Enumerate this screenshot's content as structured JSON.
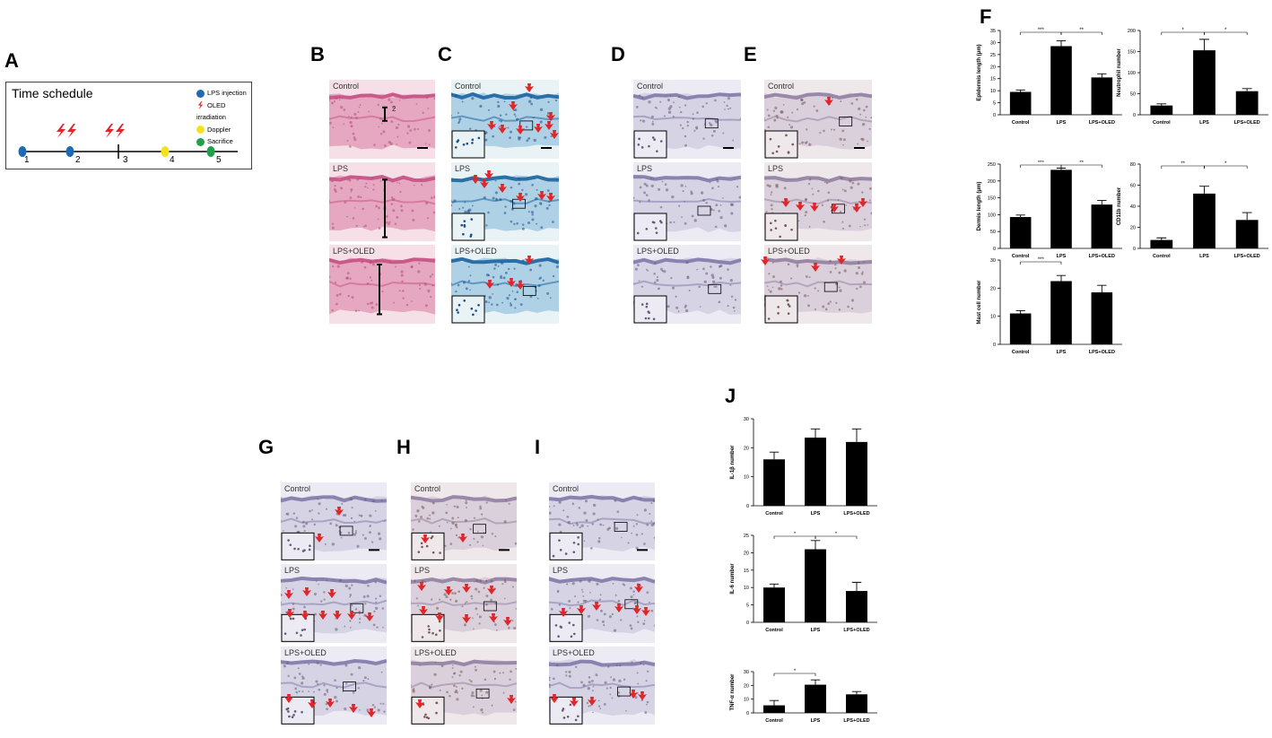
{
  "panel_labels": {
    "A": "A",
    "B": "B",
    "C": "C",
    "D": "D",
    "E": "E",
    "F": "F",
    "G": "G",
    "H": "H",
    "I": "I",
    "J": "J"
  },
  "schedule": {
    "title": "Time schedule",
    "legend": [
      {
        "label": "LPS injection",
        "color": "#1f6ab5",
        "icon": "blue-dot-icon"
      },
      {
        "label": "OLED irradiation",
        "color": "#e0262a",
        "icon": "red-lightning-icon"
      },
      {
        "label": "Doppler",
        "color": "#f5e31a",
        "icon": "yellow-dot-icon"
      },
      {
        "label": "Sacrifice",
        "color": "#21a04a",
        "icon": "green-dot-icon"
      }
    ],
    "days": [
      "1",
      "2",
      "3",
      "4",
      "5"
    ]
  },
  "tissue_labels": {
    "control": "Control",
    "lps": "LPS",
    "lps_oled": "LPS+OLED",
    "oled_marks": "2"
  },
  "chart_data": [
    {
      "id": "epidermis",
      "type": "bar",
      "categories": [
        "Control",
        "LPS",
        "LPS+OLED"
      ],
      "values": [
        9.5,
        28.5,
        15.5
      ],
      "errors": [
        0.8,
        2.2,
        1.5
      ],
      "ylabel": "Epidermis length (μm)",
      "ylim": [
        0,
        35
      ],
      "yticks": [
        0,
        5,
        10,
        15,
        20,
        25,
        30,
        35
      ],
      "sig": [
        {
          "from": 0,
          "to": 1,
          "label": "***"
        },
        {
          "from": 1,
          "to": 2,
          "label": "**"
        }
      ]
    },
    {
      "id": "neutrophil",
      "type": "bar",
      "categories": [
        "Control",
        "LPS",
        "LPS+OLED"
      ],
      "values": [
        22,
        153,
        56
      ],
      "errors": [
        4,
        26,
        6
      ],
      "ylabel": "Neutrophil number",
      "ylim": [
        0,
        200
      ],
      "yticks": [
        0,
        50,
        100,
        150,
        200
      ],
      "sig": [
        {
          "from": 0,
          "to": 1,
          "label": "*"
        },
        {
          "from": 1,
          "to": 2,
          "label": "*"
        }
      ]
    },
    {
      "id": "dermis",
      "type": "bar",
      "categories": [
        "Control",
        "LPS",
        "LPS+OLED"
      ],
      "values": [
        93,
        233,
        130
      ],
      "errors": [
        6,
        5,
        12
      ],
      "ylabel": "Dermis length (μm)",
      "ylim": [
        0,
        250
      ],
      "yticks": [
        0,
        50,
        100,
        150,
        200,
        250
      ],
      "sig": [
        {
          "from": 0,
          "to": 1,
          "label": "***"
        },
        {
          "from": 1,
          "to": 2,
          "label": "**"
        }
      ]
    },
    {
      "id": "cd11b",
      "type": "bar",
      "categories": [
        "Control",
        "LPS",
        "LPS+OLED"
      ],
      "values": [
        8,
        52,
        27
      ],
      "errors": [
        2,
        7,
        7
      ],
      "ylabel": "CD11b number",
      "ylim": [
        0,
        80
      ],
      "yticks": [
        0,
        20,
        40,
        60,
        80
      ],
      "sig": [
        {
          "from": 0,
          "to": 1,
          "label": "**"
        },
        {
          "from": 1,
          "to": 2,
          "label": "*"
        }
      ]
    },
    {
      "id": "mast",
      "type": "bar",
      "categories": [
        "Control",
        "LPS",
        "LPS+OLED"
      ],
      "values": [
        11,
        22.5,
        18.5
      ],
      "errors": [
        1,
        2,
        2.5
      ],
      "ylabel": "Mast cell number",
      "ylim": [
        0,
        30
      ],
      "yticks": [
        0,
        10,
        20,
        30
      ],
      "sig": [
        {
          "from": 0,
          "to": 1,
          "label": "***"
        }
      ]
    },
    {
      "id": "il1b",
      "type": "bar",
      "categories": [
        "Control",
        "LPS",
        "LPS+OLED"
      ],
      "values": [
        16,
        23.5,
        22
      ],
      "errors": [
        2.5,
        3,
        4.5
      ],
      "ylabel": "IL-1β number",
      "ylim": [
        0,
        30
      ],
      "yticks": [
        0,
        10,
        20,
        30
      ],
      "sig": []
    },
    {
      "id": "il6",
      "type": "bar",
      "categories": [
        "Control",
        "LPS",
        "LPS+OLED"
      ],
      "values": [
        10,
        21,
        9
      ],
      "errors": [
        1,
        2.5,
        2.5
      ],
      "ylabel": "IL-6 number",
      "ylim": [
        0,
        25
      ],
      "yticks": [
        0,
        5,
        10,
        15,
        20,
        25
      ],
      "sig": [
        {
          "from": 0,
          "to": 1,
          "label": "*"
        },
        {
          "from": 1,
          "to": 2,
          "label": "*"
        }
      ]
    },
    {
      "id": "tnfa",
      "type": "bar",
      "categories": [
        "Control",
        "LPS",
        "LPS+OLED"
      ],
      "values": [
        5.5,
        20.5,
        13.5
      ],
      "errors": [
        3.5,
        3.5,
        2
      ],
      "ylabel": "TNF-α number",
      "ylim": [
        0,
        30
      ],
      "yticks": [
        0,
        10,
        20,
        30
      ],
      "sig": [
        {
          "from": 0,
          "to": 1,
          "label": "*"
        }
      ]
    }
  ]
}
